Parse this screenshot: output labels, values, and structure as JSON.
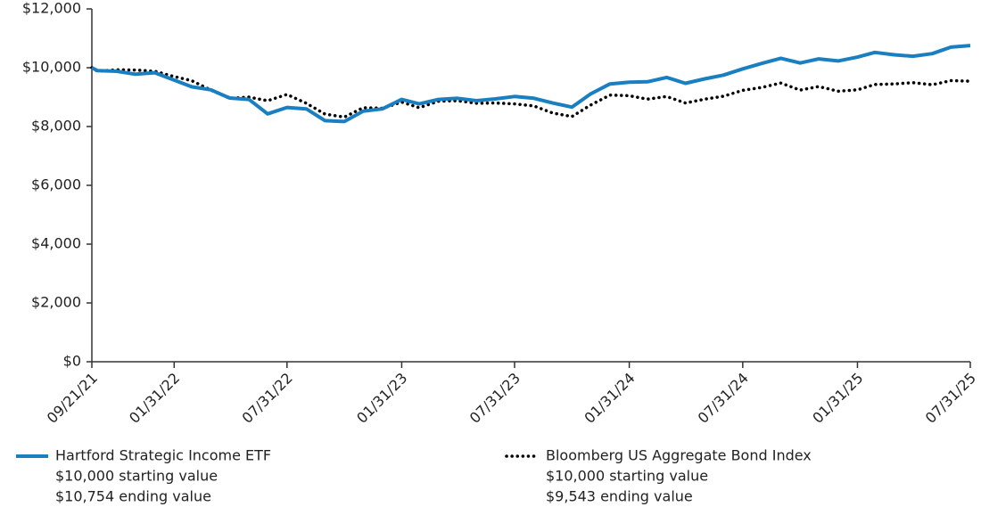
{
  "chart_data": {
    "type": "line",
    "x": [
      "09/21/21",
      "09/30/21",
      "10/31/21",
      "11/30/21",
      "12/31/21",
      "01/31/22",
      "02/28/22",
      "03/31/22",
      "04/30/22",
      "05/31/22",
      "06/30/22",
      "07/31/22",
      "08/31/22",
      "09/30/22",
      "10/31/22",
      "11/30/22",
      "12/31/22",
      "01/31/23",
      "02/28/23",
      "03/31/23",
      "04/30/23",
      "05/31/23",
      "06/30/23",
      "07/31/23",
      "08/31/23",
      "09/30/23",
      "10/31/23",
      "11/30/23",
      "12/31/23",
      "01/31/24",
      "02/29/24",
      "03/31/24",
      "04/30/24",
      "05/31/24",
      "06/30/24",
      "07/31/24",
      "08/31/24",
      "09/30/24",
      "10/31/24",
      "11/30/24",
      "12/31/24",
      "01/31/25",
      "02/28/25",
      "03/31/25",
      "04/30/25",
      "05/31/25",
      "06/30/25",
      "07/31/25"
    ],
    "xlim": [
      "09/21/21",
      "07/31/25"
    ],
    "xticks": [
      "09/21/21",
      "01/31/22",
      "07/31/22",
      "01/31/23",
      "07/31/23",
      "01/31/24",
      "07/31/24",
      "01/31/25",
      "07/31/25"
    ],
    "ylim": [
      0,
      12000
    ],
    "yticks": [
      {
        "value": 0,
        "label": "$0"
      },
      {
        "value": 2000,
        "label": "$2,000"
      },
      {
        "value": 4000,
        "label": "$4,000"
      },
      {
        "value": 6000,
        "label": "$6,000"
      },
      {
        "value": 8000,
        "label": "$8,000"
      },
      {
        "value": 10000,
        "label": "$10,000"
      },
      {
        "value": 12000,
        "label": "$12,000"
      }
    ],
    "series": [
      {
        "name": "Hartford Strategic Income ETF",
        "color": "#1a7fc1",
        "style": "solid",
        "starting_label": "$10,000 starting value",
        "ending_label": "$10,754 ending value",
        "values": [
          10000,
          9900,
          9880,
          9780,
          9830,
          9580,
          9350,
          9250,
          8970,
          8920,
          8430,
          8650,
          8600,
          8200,
          8170,
          8520,
          8600,
          8920,
          8770,
          8920,
          8960,
          8880,
          8940,
          9020,
          8960,
          8800,
          8660,
          9110,
          9450,
          9510,
          9520,
          9670,
          9470,
          9620,
          9750,
          9960,
          10150,
          10320,
          10160,
          10300,
          10230,
          10360,
          10520,
          10440,
          10390,
          10480,
          10700,
          10754
        ]
      },
      {
        "name": "Bloomberg US Aggregate Bond Index",
        "color": "#000000",
        "style": "dotted",
        "starting_label": "$10,000 starting value",
        "ending_label": "$9,543 ending value",
        "values": [
          10000,
          9880,
          9930,
          9920,
          9880,
          9700,
          9560,
          9240,
          8960,
          9000,
          8880,
          9090,
          8790,
          8420,
          8320,
          8640,
          8620,
          8830,
          8640,
          8860,
          8880,
          8790,
          8800,
          8770,
          8700,
          8460,
          8340,
          8730,
          9070,
          9050,
          8930,
          9020,
          8800,
          8930,
          9030,
          9230,
          9330,
          9480,
          9240,
          9360,
          9200,
          9250,
          9430,
          9450,
          9490,
          9420,
          9560,
          9543
        ]
      }
    ]
  }
}
